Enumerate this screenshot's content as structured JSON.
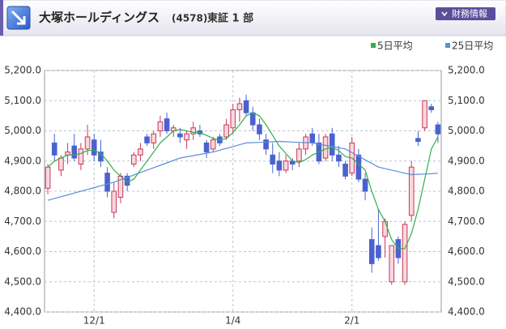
{
  "chart_data": {
    "type": "candlestick",
    "title": "大塚ホールディングス",
    "code": "(4578)",
    "market": "東証 1 部",
    "button": "財務情報",
    "categories": [
      null,
      null,
      null,
      null,
      null,
      null,
      null,
      "12/1",
      null,
      null,
      null,
      null,
      null,
      null,
      null,
      null,
      null,
      null,
      null,
      null,
      null,
      null,
      null,
      null,
      null,
      null,
      null,
      null,
      "1/4",
      null,
      null,
      null,
      null,
      null,
      null,
      null,
      null,
      null,
      null,
      null,
      null,
      null,
      null,
      null,
      null,
      null,
      "2/1",
      null,
      null,
      null,
      null,
      null,
      null,
      null,
      null,
      null,
      null,
      null,
      null,
      null
    ],
    "open": [
      4810,
      4960,
      4870,
      4920,
      4950,
      4890,
      4940,
      4970,
      4930,
      4860,
      4730,
      4780,
      4850,
      4890,
      4920,
      4980,
      4960,
      5000,
      5040,
      5000,
      4990,
      4970,
      4990,
      5000,
      4960,
      4940,
      4980,
      4980,
      5010,
      5070,
      5100,
      5060,
      5020,
      4970,
      4920,
      4900,
      4870,
      4900,
      4900,
      4940,
      4990,
      4960,
      4910,
      4990,
      4920,
      4890,
      4860,
      4920,
      4840,
      4640,
      4620,
      4650,
      4500,
      4640,
      4500,
      4720,
      4975,
      5010,
      5080,
      5020
    ],
    "high": [
      4890,
      4990,
      4920,
      4960,
      4990,
      4960,
      5020,
      4990,
      4970,
      4880,
      4830,
      4860,
      4860,
      4930,
      4960,
      4990,
      5000,
      5050,
      5060,
      5020,
      5010,
      5000,
      5030,
      5020,
      4970,
      4980,
      4990,
      5040,
      5090,
      5110,
      5120,
      5080,
      5040,
      4990,
      4960,
      4930,
      4920,
      4910,
      4960,
      4990,
      5010,
      4990,
      4990,
      5010,
      4950,
      4900,
      4980,
      4940,
      4860,
      4680,
      4740,
      4710,
      4620,
      4650,
      4700,
      4900,
      5000,
      5100,
      5090,
      5030
    ],
    "low": [
      4790,
      4900,
      4850,
      4890,
      4900,
      4870,
      4920,
      4900,
      4880,
      4780,
      4710,
      4760,
      4800,
      4880,
      4900,
      4950,
      4940,
      4980,
      4990,
      4980,
      4960,
      4940,
      4970,
      4980,
      4910,
      4930,
      4950,
      4970,
      4990,
      5030,
      5050,
      5000,
      4970,
      4920,
      4860,
      4850,
      4860,
      4870,
      4880,
      4920,
      4950,
      4890,
      4900,
      4900,
      4880,
      4840,
      4850,
      4830,
      4770,
      4530,
      4570,
      4580,
      4490,
      4560,
      4490,
      4700,
      4950,
      5000,
      5060,
      4960
    ],
    "close": [
      4880,
      4920,
      4910,
      4930,
      4910,
      4940,
      4980,
      4920,
      4900,
      4800,
      4800,
      4850,
      4820,
      4920,
      4940,
      4960,
      4990,
      5030,
      5000,
      5010,
      4980,
      4990,
      5010,
      4990,
      4930,
      4970,
      4960,
      5020,
      5070,
      5090,
      5060,
      5020,
      4990,
      4940,
      4890,
      4870,
      4900,
      4890,
      4940,
      4980,
      4960,
      4900,
      4980,
      4920,
      4900,
      4850,
      4960,
      4840,
      4800,
      4560,
      4580,
      4700,
      4620,
      4580,
      4690,
      4880,
      4965,
      5100,
      5070,
      4990
    ],
    "up_color": "#c8385a",
    "down_color": "#4a62d0",
    "series": [
      {
        "name": "5日平均",
        "color": "#2fb04a",
        "values": [
          4880,
          4900,
          4910,
          4920,
          4920,
          4925,
          4935,
          4935,
          4925,
          4900,
          4870,
          4850,
          4830,
          4840,
          4870,
          4900,
          4930,
          4960,
          4980,
          5000,
          5005,
          5000,
          4995,
          4995,
          4985,
          4975,
          4970,
          4975,
          4995,
          5020,
          5050,
          5060,
          5050,
          5020,
          4985,
          4950,
          4925,
          4900,
          4895,
          4905,
          4920,
          4930,
          4940,
          4945,
          4935,
          4915,
          4910,
          4890,
          4870,
          4800,
          4740,
          4700,
          4640,
          4610,
          4610,
          4660,
          4740,
          4840,
          4940,
          4980
        ]
      },
      {
        "name": "25日平均",
        "color": "#5b8fd8",
        "values": [
          4770,
          4776,
          4782,
          4788,
          4794,
          4800,
          4806,
          4812,
          4818,
          4824,
          4830,
          4838,
          4846,
          4854,
          4862,
          4870,
          4878,
          4886,
          4894,
          4902,
          4910,
          4914,
          4918,
          4922,
          4926,
          4930,
          4936,
          4942,
          4948,
          4954,
          4960,
          4961,
          4962,
          4963,
          4964,
          4965,
          4964,
          4963,
          4962,
          4961,
          4960,
          4956,
          4952,
          4948,
          4944,
          4940,
          4928,
          4916,
          4904,
          4892,
          4880,
          4875,
          4870,
          4865,
          4860,
          4855,
          4856,
          4857,
          4858,
          4860
        ]
      }
    ],
    "ylim": [
      4400,
      5200
    ],
    "yticks": [
      {
        "value": 4400,
        "label": "4,400.0"
      },
      {
        "value": 4500,
        "label": "4,500.0"
      },
      {
        "value": 4600,
        "label": "4,600.0"
      },
      {
        "value": 4700,
        "label": "4,700.0"
      },
      {
        "value": 4800,
        "label": "4,800.0"
      },
      {
        "value": 4900,
        "label": "4,900.0"
      },
      {
        "value": 5000,
        "label": "5,000.0"
      },
      {
        "value": 5100,
        "label": "5,100.0"
      },
      {
        "value": 5200,
        "label": "5,200.0"
      }
    ],
    "grid": true
  }
}
